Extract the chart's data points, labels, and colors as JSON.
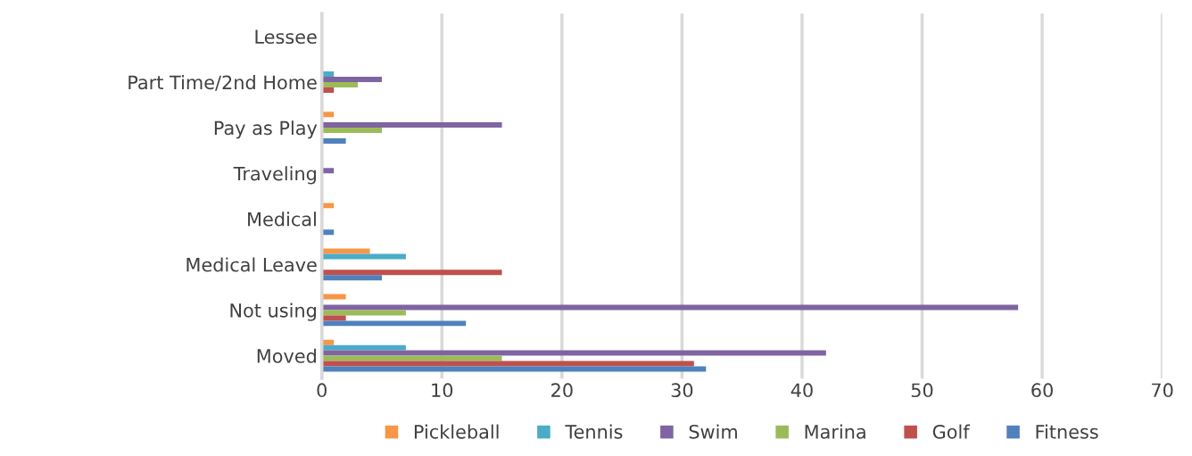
{
  "chart_data": {
    "type": "bar",
    "orientation": "horizontal",
    "categories": [
      "Lessee",
      "Part Time/2nd Home",
      "Pay as Play",
      "Traveling",
      "Medical",
      "Medical Leave",
      "Not using",
      "Moved"
    ],
    "series": [
      {
        "name": "Pickleball",
        "color": "#f79646",
        "values": [
          0,
          0,
          1,
          0,
          1,
          4,
          2,
          1
        ]
      },
      {
        "name": "Tennis",
        "color": "#4bacc6",
        "values": [
          0,
          1,
          0,
          0,
          0,
          7,
          0,
          7
        ]
      },
      {
        "name": "Swim",
        "color": "#8064a2",
        "values": [
          0,
          5,
          15,
          1,
          0,
          0,
          58,
          42
        ]
      },
      {
        "name": "Marina",
        "color": "#9bbb59",
        "values": [
          0,
          3,
          5,
          0,
          0,
          0,
          7,
          15
        ]
      },
      {
        "name": "Golf",
        "color": "#c0504d",
        "values": [
          0,
          1,
          0,
          0,
          0,
          15,
          2,
          31
        ]
      },
      {
        "name": "Fitness",
        "color": "#4f81bd",
        "values": [
          0,
          0,
          2,
          0,
          1,
          5,
          12,
          32
        ]
      }
    ],
    "xlim": [
      0,
      70
    ],
    "xticks": [
      0,
      10,
      20,
      30,
      40,
      50,
      60,
      70
    ],
    "grid": "x",
    "legend": "bottom"
  }
}
